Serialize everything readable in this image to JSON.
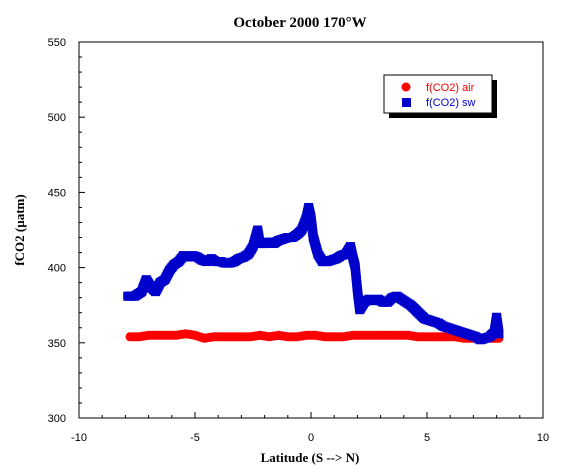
{
  "chart_data": {
    "type": "scatter",
    "title": "October 2000 170°W",
    "xlabel": "Latitude (S --> N)",
    "ylabel": "fCO2 (µatm)",
    "xlim": [
      -10,
      10
    ],
    "ylim": [
      300,
      550
    ],
    "xticks": [
      -10,
      -5,
      0,
      5,
      10
    ],
    "yticks": [
      300,
      350,
      400,
      450,
      500,
      550
    ],
    "grid": false,
    "legend": {
      "position": "top-right"
    },
    "series": [
      {
        "name": "f(CO2) air",
        "color": "#ff0000",
        "marker": "circle",
        "x": [
          -7.8,
          -7.4,
          -7.0,
          -6.6,
          -6.2,
          -5.8,
          -5.4,
          -5.0,
          -4.6,
          -4.2,
          -3.8,
          -3.4,
          -3.0,
          -2.6,
          -2.2,
          -1.8,
          -1.4,
          -1.0,
          -0.6,
          -0.2,
          0.2,
          0.6,
          1.0,
          1.4,
          1.8,
          2.2,
          2.6,
          3.0,
          3.4,
          3.8,
          4.2,
          4.6,
          5.0,
          5.4,
          5.8,
          6.2,
          6.6,
          7.0,
          7.4,
          7.8,
          8.1
        ],
        "y": [
          354,
          354,
          355,
          355,
          355,
          355,
          356,
          355,
          353,
          354,
          354,
          354,
          354,
          354,
          355,
          354,
          355,
          354,
          354,
          355,
          355,
          354,
          354,
          354,
          355,
          355,
          355,
          355,
          355,
          355,
          355,
          354,
          354,
          354,
          354,
          354,
          353,
          353,
          353,
          353,
          353
        ]
      },
      {
        "name": "f(CO2) sw",
        "color": "#0000cc",
        "marker": "square",
        "x": [
          -7.9,
          -7.6,
          -7.3,
          -7.1,
          -6.9,
          -6.7,
          -6.5,
          -6.3,
          -6.1,
          -5.9,
          -5.7,
          -5.5,
          -5.3,
          -5.1,
          -4.9,
          -4.7,
          -4.5,
          -4.3,
          -4.1,
          -3.9,
          -3.7,
          -3.5,
          -3.3,
          -3.1,
          -2.9,
          -2.7,
          -2.5,
          -2.3,
          -2.2,
          -2.0,
          -1.8,
          -1.6,
          -1.4,
          -1.2,
          -1.0,
          -0.8,
          -0.6,
          -0.4,
          -0.2,
          -0.1,
          0.0,
          0.1,
          0.3,
          0.5,
          0.7,
          0.9,
          1.1,
          1.3,
          1.5,
          1.7,
          1.8,
          1.9,
          2.0,
          2.1,
          2.3,
          2.5,
          2.7,
          2.9,
          3.1,
          3.3,
          3.5,
          3.7,
          3.9,
          4.1,
          4.3,
          4.5,
          4.7,
          4.9,
          5.1,
          5.3,
          5.5,
          5.7,
          5.9,
          6.1,
          6.3,
          6.5,
          6.7,
          6.9,
          7.1,
          7.3,
          7.5,
          7.7,
          7.9,
          8.0,
          8.1
        ],
        "y": [
          381,
          381,
          384,
          392,
          387,
          384,
          390,
          392,
          398,
          402,
          404,
          408,
          407,
          408,
          407,
          405,
          404,
          406,
          404,
          404,
          403,
          403,
          404,
          406,
          407,
          409,
          414,
          425,
          416,
          416,
          417,
          416,
          418,
          419,
          420,
          420,
          422,
          425,
          433,
          440,
          433,
          420,
          409,
          404,
          404,
          405,
          406,
          408,
          409,
          414,
          407,
          401,
          385,
          372,
          377,
          379,
          378,
          379,
          377,
          377,
          380,
          381,
          379,
          377,
          375,
          372,
          369,
          366,
          365,
          364,
          363,
          361,
          360,
          359,
          358,
          357,
          356,
          355,
          354,
          352,
          353,
          354,
          357,
          367,
          356
        ]
      }
    ]
  }
}
